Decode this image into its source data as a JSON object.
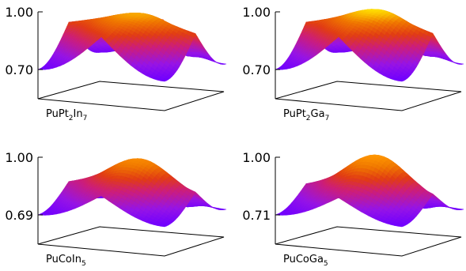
{
  "chart_data": [
    {
      "type": "surface",
      "label": [
        "PuPt",
        "2",
        "In",
        "7"
      ],
      "zlim": [
        0.7,
        1.0
      ],
      "z_ticks": [
        "1.00",
        "0.70"
      ],
      "grid": false,
      "colormap": "purple-red-orange-yellow",
      "color_max": "#ffd000",
      "z_peak": 0.98,
      "z_ridge": 0.94,
      "z_corner": 0.7,
      "z_edge": 0.9
    },
    {
      "type": "surface",
      "label": [
        "PuPt",
        "2",
        "Ga",
        "7"
      ],
      "zlim": [
        0.7,
        1.0
      ],
      "z_ticks": [
        "1.00",
        "0.70"
      ],
      "grid": false,
      "colormap": "purple-red-orange-yellow",
      "color_max": "#ffe000",
      "z_peak": 1.0,
      "z_ridge": 0.94,
      "z_corner": 0.7,
      "z_edge": 0.9
    },
    {
      "type": "surface",
      "label": [
        "PuCoIn",
        "5"
      ],
      "zlim": [
        0.69,
        1.0
      ],
      "z_ticks": [
        "1.00",
        "0.69"
      ],
      "grid": false,
      "colormap": "purple-red-orange-yellow",
      "color_max": "#ff9800",
      "z_peak": 0.98,
      "z_ridge": 0.86,
      "z_corner": 0.69,
      "z_edge": 0.82
    },
    {
      "type": "surface",
      "label": [
        "PuCoGa",
        "5"
      ],
      "zlim": [
        0.71,
        1.0
      ],
      "z_ticks": [
        "1.00",
        "0.71"
      ],
      "grid": false,
      "colormap": "purple-red-orange-yellow",
      "color_max": "#ff9800",
      "z_peak": 1.0,
      "z_ridge": 0.86,
      "z_corner": 0.71,
      "z_edge": 0.82
    }
  ]
}
